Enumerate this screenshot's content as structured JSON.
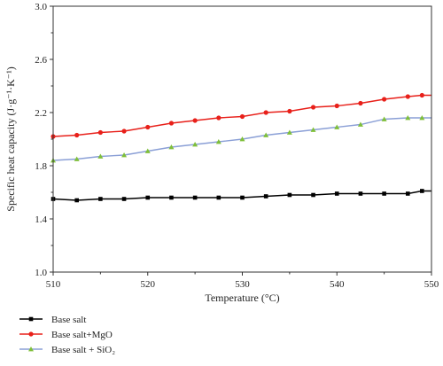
{
  "chart_data": {
    "type": "line",
    "xlabel": "Temperature (°C)",
    "ylabel": "Specific heat capacity (J·g⁻¹·K⁻¹)",
    "xlim": [
      510,
      550
    ],
    "ylim": [
      1.0,
      3.0
    ],
    "xticks": [
      "510",
      "520",
      "530",
      "540",
      "550"
    ],
    "yticks": [
      "1.0",
      "1.4",
      "1.8",
      "2.2",
      "2.6",
      "3.0"
    ],
    "grid": false,
    "legend_position": "bottom-left",
    "x": [
      510,
      512.5,
      515,
      517.5,
      520,
      522.5,
      525,
      527.5,
      530,
      532.5,
      535,
      537.5,
      540,
      542.5,
      545,
      547.5,
      549
    ],
    "series": [
      {
        "name": "Base salt",
        "color": "#000000",
        "marker": "square",
        "values": [
          1.55,
          1.54,
          1.55,
          1.55,
          1.56,
          1.56,
          1.56,
          1.56,
          1.56,
          1.57,
          1.58,
          1.58,
          1.59,
          1.59,
          1.59,
          1.59,
          1.61
        ]
      },
      {
        "name": "Base salt+MgO",
        "color": "#e8201a",
        "marker": "circle",
        "values": [
          2.02,
          2.03,
          2.05,
          2.06,
          2.09,
          2.12,
          2.14,
          2.16,
          2.17,
          2.2,
          2.21,
          2.24,
          2.25,
          2.27,
          2.3,
          2.32,
          2.33
        ]
      },
      {
        "name": "Base salt + SiO₂",
        "color": "#7fbf3a",
        "marker": "triangle",
        "line_color": "#8a9fd6",
        "values": [
          1.84,
          1.85,
          1.87,
          1.88,
          1.91,
          1.94,
          1.96,
          1.98,
          2.0,
          2.03,
          2.05,
          2.07,
          2.09,
          2.11,
          2.15,
          2.16,
          2.16
        ]
      }
    ]
  }
}
